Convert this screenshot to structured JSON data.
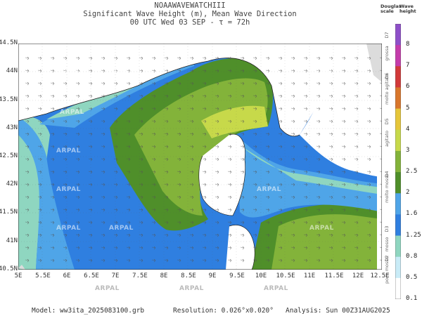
{
  "header": {
    "line1": "NOAAWAVEWATCHIII",
    "line2": "Significant Wave Height (m), Mean Wave Direction",
    "line3": "00 UTC Wed 03 SEP  -  τ = 72h"
  },
  "axes": {
    "lat_labels": [
      "44.5N",
      "44N",
      "43.5N",
      "43N",
      "42.5N",
      "42N",
      "41.5N",
      "41N",
      "40.5N"
    ],
    "lon_labels": [
      "5E",
      "5.5E",
      "6E",
      "6.5E",
      "7E",
      "7.5E",
      "8E",
      "8.5E",
      "9E",
      "9.5E",
      "10E",
      "10.5E",
      "11E",
      "11.5E",
      "12E",
      "12.5E"
    ]
  },
  "legend": {
    "title": "Wave height",
    "douglas_title": "Douglas scale",
    "values": [
      "8",
      "7",
      "6",
      "5",
      "4",
      "3",
      "2.5",
      "2",
      "1.6",
      "1.25",
      "0.8",
      "0.5",
      "0.1"
    ],
    "douglas_codes": [
      "D7",
      "D6",
      "D5",
      "D4",
      "D3",
      "D2"
    ],
    "douglas_words": [
      "grossa",
      "molto agitato",
      "agitato",
      "molto mosso",
      "mosso",
      "poco mosso"
    ],
    "colors": [
      "#8e4fc9",
      "#c43cab",
      "#d23a3a",
      "#d9772c",
      "#e6c63a",
      "#c7d94a",
      "#83b33a",
      "#4f8f2a",
      "#4fa5e8",
      "#2f7fe0",
      "#8fd6c0",
      "#c9ecf7",
      "#ffffff"
    ]
  },
  "watermark": "ARPAL",
  "footer": {
    "model": "Model: ww3ita_2025083100.grb",
    "resolution": "Resolution: 0.026°x0.020°",
    "analysis": "Analysis: Sun 00Z31AUG2025"
  }
}
